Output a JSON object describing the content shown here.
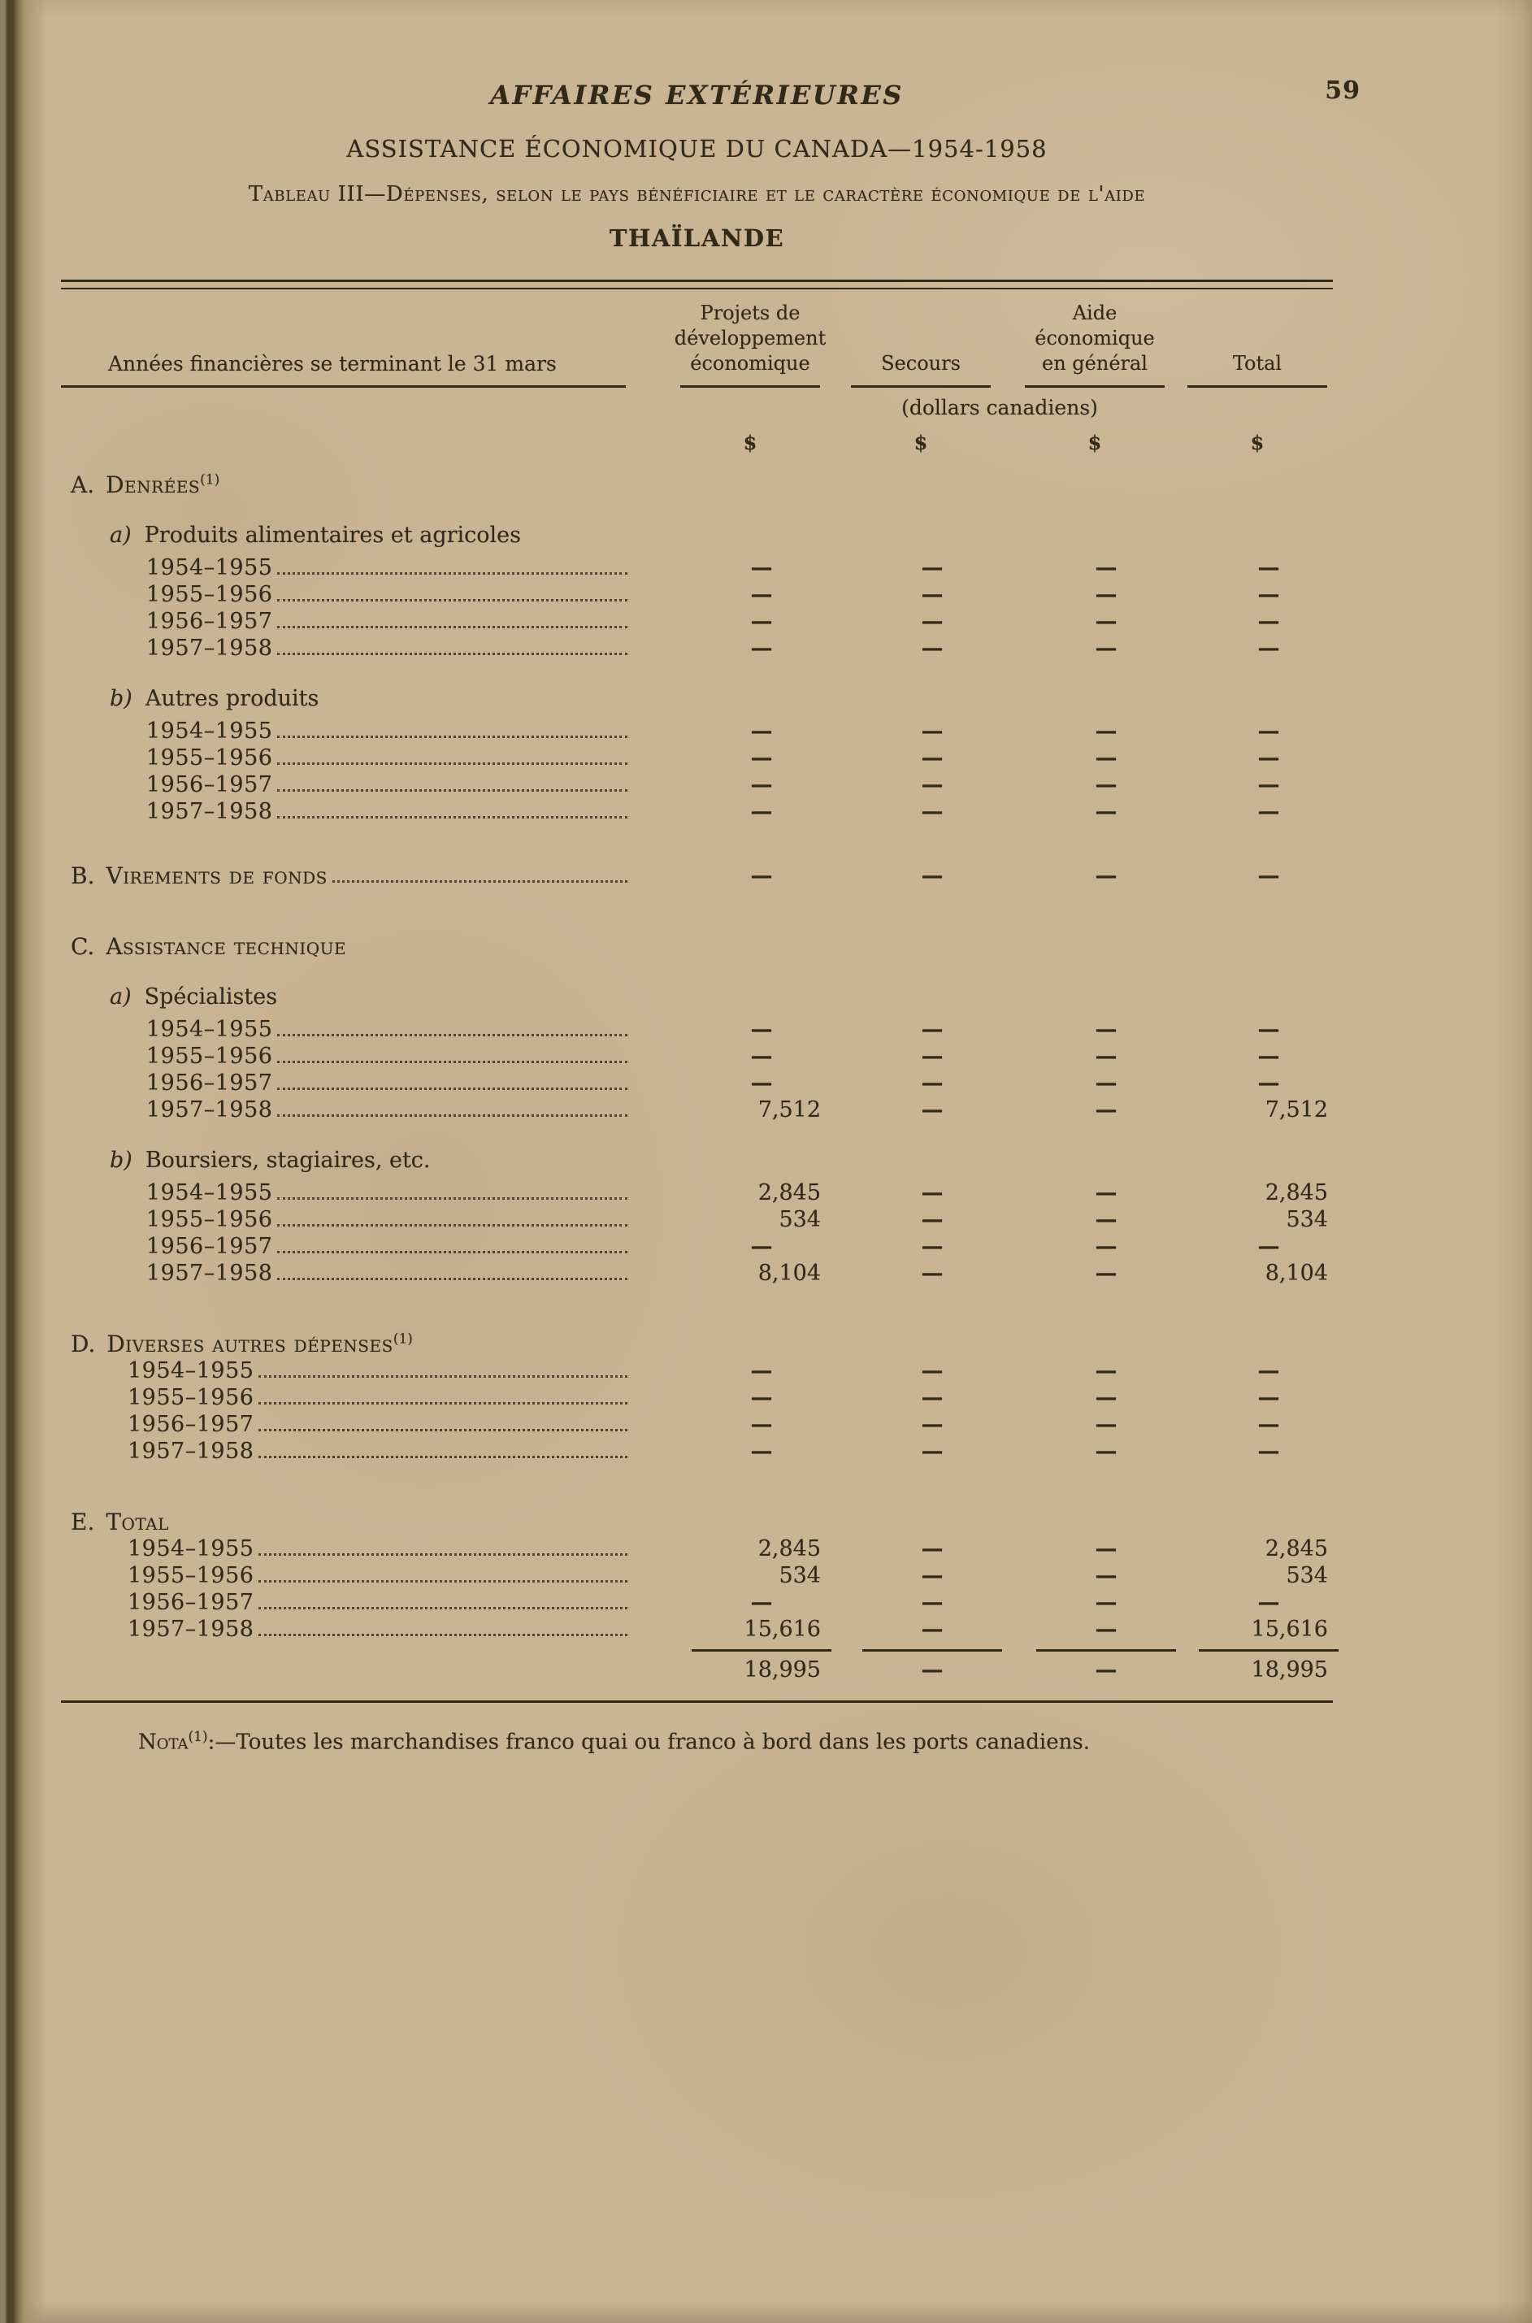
{
  "page": {
    "number": "59"
  },
  "header": {
    "journal_title": "AFFAIRES EXTÉRIEURES",
    "subtitle": "ASSISTANCE ÉCONOMIQUE DU CANADA—1954-1958",
    "table_caption": "Tableau III—Dépenses, selon le pays bénéficiaire et le caractère économique de l'aide",
    "country": "THAÏLANDE"
  },
  "table": {
    "stub_header": "Années financières se terminant le 31 mars",
    "columns": [
      "Projets de\ndéveloppement\néconomique",
      "Secours",
      "Aide\néconomique\nen général",
      "Total"
    ],
    "unit_note": "(dollars canadiens)",
    "currency_symbol": "$",
    "sections": [
      {
        "letter": "A.",
        "title": "Denrées",
        "marker": "(1)",
        "groups": [
          {
            "label": "a)",
            "name": "Produits alimentaires et agricoles",
            "rows": [
              {
                "year": "1954–1955",
                "values": [
                  "—",
                  "—",
                  "—",
                  "—"
                ]
              },
              {
                "year": "1955–1956",
                "values": [
                  "—",
                  "—",
                  "—",
                  "—"
                ]
              },
              {
                "year": "1956–1957",
                "values": [
                  "—",
                  "—",
                  "—",
                  "—"
                ]
              },
              {
                "year": "1957–1958",
                "values": [
                  "—",
                  "—",
                  "—",
                  "—"
                ]
              }
            ]
          },
          {
            "label": "b)",
            "name": "Autres produits",
            "rows": [
              {
                "year": "1954–1955",
                "values": [
                  "—",
                  "—",
                  "—",
                  "—"
                ]
              },
              {
                "year": "1955–1956",
                "values": [
                  "—",
                  "—",
                  "—",
                  "—"
                ]
              },
              {
                "year": "1956–1957",
                "values": [
                  "—",
                  "—",
                  "—",
                  "—"
                ]
              },
              {
                "year": "1957–1958",
                "values": [
                  "—",
                  "—",
                  "—",
                  "—"
                ]
              }
            ]
          }
        ]
      },
      {
        "letter": "B.",
        "title": "Virements de fonds",
        "inline": {
          "values": [
            "—",
            "—",
            "—",
            "—"
          ]
        }
      },
      {
        "letter": "C.",
        "title": "Assistance technique",
        "groups": [
          {
            "label": "a)",
            "name": "Spécialistes",
            "rows": [
              {
                "year": "1954–1955",
                "values": [
                  "—",
                  "—",
                  "—",
                  "—"
                ]
              },
              {
                "year": "1955–1956",
                "values": [
                  "—",
                  "—",
                  "—",
                  "—"
                ]
              },
              {
                "year": "1956–1957",
                "values": [
                  "—",
                  "—",
                  "—",
                  "—"
                ]
              },
              {
                "year": "1957–1958",
                "values": [
                  "7,512",
                  "—",
                  "—",
                  "7,512"
                ]
              }
            ]
          },
          {
            "label": "b)",
            "name": "Boursiers, stagiaires, etc.",
            "rows": [
              {
                "year": "1954–1955",
                "values": [
                  "2,845",
                  "—",
                  "—",
                  "2,845"
                ]
              },
              {
                "year": "1955–1956",
                "values": [
                  "534",
                  "—",
                  "—",
                  "534"
                ]
              },
              {
                "year": "1956–1957",
                "values": [
                  "—",
                  "—",
                  "—",
                  "—"
                ]
              },
              {
                "year": "1957–1958",
                "values": [
                  "8,104",
                  "—",
                  "—",
                  "8,104"
                ]
              }
            ]
          }
        ]
      },
      {
        "letter": "D.",
        "title": "Diverses autres dépenses",
        "marker": "(1)",
        "rows": [
          {
            "year": "1954–1955",
            "values": [
              "—",
              "—",
              "—",
              "—"
            ]
          },
          {
            "year": "1955–1956",
            "values": [
              "—",
              "—",
              "—",
              "—"
            ]
          },
          {
            "year": "1956–1957",
            "values": [
              "—",
              "—",
              "—",
              "—"
            ]
          },
          {
            "year": "1957–1958",
            "values": [
              "—",
              "—",
              "—",
              "—"
            ]
          }
        ]
      },
      {
        "letter": "E.",
        "title": "Total",
        "rows": [
          {
            "year": "1954–1955",
            "values": [
              "2,845",
              "—",
              "—",
              "2,845"
            ]
          },
          {
            "year": "1955–1956",
            "values": [
              "534",
              "—",
              "—",
              "534"
            ]
          },
          {
            "year": "1956–1957",
            "values": [
              "—",
              "—",
              "—",
              "—"
            ]
          },
          {
            "year": "1957–1958",
            "values": [
              "15,616",
              "—",
              "—",
              "15,616"
            ]
          }
        ]
      }
    ],
    "grand_total": {
      "values": [
        "18,995",
        "—",
        "—",
        "18,995"
      ]
    },
    "footnote": {
      "label": "Nota",
      "marker": "(1)",
      "text": ":—Toutes les marchandises franco quai ou franco à bord dans les ports canadiens."
    }
  },
  "colors": {
    "paper": "#c9b494",
    "ink": "#332919"
  }
}
